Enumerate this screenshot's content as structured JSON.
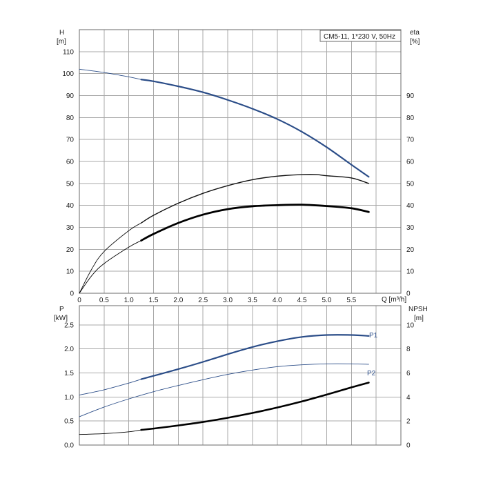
{
  "title": "CM5-11, 1*230 V, 50Hz",
  "chart_data": [
    {
      "type": "line",
      "panel": "head-efficiency",
      "left_axis": {
        "label": "H",
        "unit": "[m]",
        "ylim": [
          0,
          120
        ],
        "ticks": [
          "0",
          "10",
          "20",
          "30",
          "40",
          "50",
          "60",
          "70",
          "80",
          "90",
          "100",
          "110"
        ]
      },
      "right_axis": {
        "label": "eta",
        "unit": "[%]",
        "ylim": [
          0,
          120
        ],
        "ticks": [
          "0",
          "10",
          "20",
          "30",
          "40",
          "50",
          "60",
          "70",
          "80",
          "90"
        ]
      },
      "x_axis": {
        "label": "Q [m³/h]",
        "xlim": [
          0,
          6.5
        ],
        "ticks": [
          "0",
          "0.5",
          "1.0",
          "1.5",
          "2.0",
          "2.5",
          "3.0",
          "3.5",
          "4.0",
          "4.5",
          "5.0",
          "5.5"
        ]
      },
      "grid": true,
      "series": [
        {
          "key": "h",
          "axis": "left",
          "color": "#2b4d88",
          "width": 2.2,
          "op_start": 1.25,
          "x": [
            0,
            0.5,
            1.0,
            1.25,
            1.5,
            2.0,
            2.5,
            3.0,
            3.5,
            4.0,
            4.5,
            5.0,
            5.5,
            5.85
          ],
          "y": [
            102,
            100.5,
            98.5,
            97.3,
            96.5,
            94.2,
            91.5,
            88,
            84,
            79.3,
            73.5,
            66.5,
            58.5,
            53
          ]
        },
        {
          "key": "eta",
          "axis": "right",
          "color": "#111111",
          "width": 1.4,
          "op_start": 1.25,
          "x": [
            0,
            0.25,
            0.5,
            1.0,
            1.25,
            1.5,
            2.0,
            2.5,
            3.0,
            3.5,
            4.0,
            4.5,
            4.8,
            5.0,
            5.5,
            5.85
          ],
          "y": [
            0,
            11,
            19,
            28.5,
            32,
            35.5,
            41,
            45.5,
            49,
            51.7,
            53.3,
            54,
            54,
            53.5,
            52.5,
            50
          ]
        },
        {
          "key": "eta_combined",
          "axis": "right",
          "color": "#000000",
          "width": 2.8,
          "op_start": 1.25,
          "x": [
            0,
            0.25,
            0.5,
            1.0,
            1.25,
            1.5,
            2.0,
            2.5,
            3.0,
            3.5,
            4.0,
            4.5,
            5.0,
            5.5,
            5.85
          ],
          "y": [
            0,
            8,
            13.5,
            21,
            24,
            27,
            32,
            35.8,
            38.3,
            39.6,
            40.1,
            40.3,
            39.7,
            38.7,
            37
          ]
        }
      ]
    },
    {
      "type": "line",
      "panel": "power-npsh",
      "left_axis": {
        "label": "P",
        "unit": "[kW]",
        "ylim": [
          0,
          2.9
        ],
        "ticks": [
          "0.0",
          "0.5",
          "1.0",
          "1.5",
          "2.0",
          "2.5"
        ]
      },
      "right_axis": {
        "label": "NPSH",
        "unit": "[m]",
        "ylim": [
          0,
          11.6
        ],
        "ticks": [
          "0",
          "2",
          "4",
          "6",
          "8",
          "10"
        ]
      },
      "x_axis": {
        "xlim": [
          0,
          6.5
        ]
      },
      "grid": true,
      "series": [
        {
          "key": "p1",
          "name": "P1",
          "axis": "left",
          "color": "#2b4d88",
          "width": 2.2,
          "op_start": 1.25,
          "x": [
            0,
            0.5,
            1.0,
            1.25,
            1.5,
            2.0,
            2.5,
            3.0,
            3.5,
            4.0,
            4.5,
            5.0,
            5.5,
            5.85
          ],
          "y": [
            1.04,
            1.15,
            1.29,
            1.37,
            1.44,
            1.58,
            1.73,
            1.89,
            2.04,
            2.16,
            2.25,
            2.29,
            2.29,
            2.27
          ]
        },
        {
          "key": "p2",
          "name": "P2",
          "axis": "left",
          "color": "#2b4d88",
          "width": 1.0,
          "op_start": 99,
          "x": [
            0,
            0.5,
            1.0,
            1.5,
            2.0,
            2.5,
            3.0,
            3.5,
            4.0,
            4.5,
            5.0,
            5.5,
            5.85
          ],
          "y": [
            0.59,
            0.79,
            0.96,
            1.11,
            1.24,
            1.36,
            1.47,
            1.56,
            1.63,
            1.67,
            1.69,
            1.69,
            1.68
          ]
        },
        {
          "key": "npsh",
          "axis": "right",
          "color": "#000000",
          "width": 2.6,
          "op_start": 1.25,
          "x": [
            0,
            0.5,
            1.0,
            1.25,
            1.5,
            2.0,
            2.5,
            3.0,
            3.5,
            4.0,
            4.5,
            5.0,
            5.5,
            5.85
          ],
          "y": [
            0.88,
            0.95,
            1.1,
            1.26,
            1.37,
            1.63,
            1.92,
            2.27,
            2.67,
            3.12,
            3.63,
            4.2,
            4.8,
            5.2
          ]
        }
      ]
    }
  ]
}
